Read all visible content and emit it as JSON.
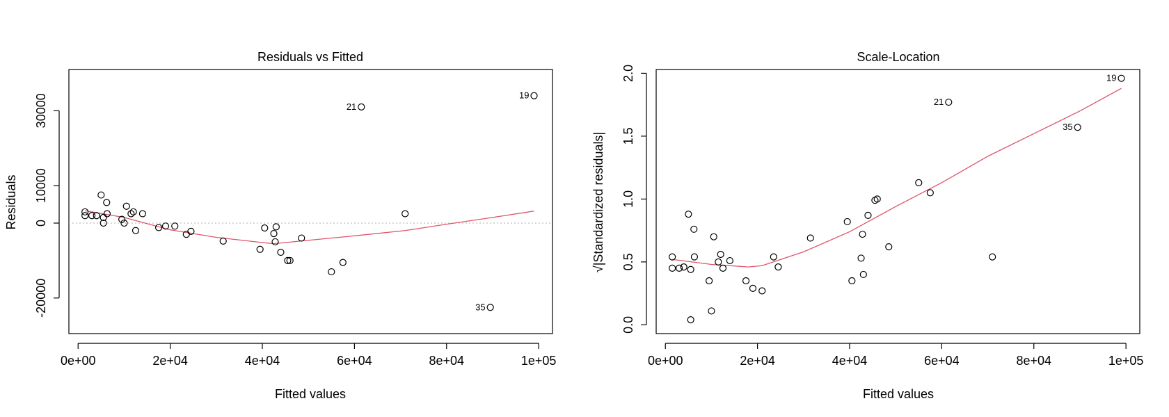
{
  "chart_data": [
    {
      "type": "scatter",
      "title": "Residuals vs Fitted",
      "xlabel": "Fitted values",
      "ylabel": "Residuals",
      "xlim": [
        -2000,
        103000
      ],
      "ylim": [
        -29500,
        41000
      ],
      "xticks": [
        0,
        20000,
        40000,
        60000,
        80000,
        100000
      ],
      "xtick_labels": [
        "0e+00",
        "2e+04",
        "4e+04",
        "6e+04",
        "8e+04",
        "1e+05"
      ],
      "yticks": [
        -20000,
        0,
        10000,
        30000
      ],
      "ytick_labels": [
        "-20000",
        "0",
        "10000",
        "30000"
      ],
      "reference_line": {
        "y": 0,
        "color": "#bebebe",
        "style": "dotted"
      },
      "points": [
        {
          "x": 1500,
          "y": 3000
        },
        {
          "x": 1500,
          "y": 2000
        },
        {
          "x": 3000,
          "y": 2000
        },
        {
          "x": 4000,
          "y": 2000
        },
        {
          "x": 5000,
          "y": 7500
        },
        {
          "x": 5500,
          "y": 1500
        },
        {
          "x": 5500,
          "y": 0
        },
        {
          "x": 6200,
          "y": 5500
        },
        {
          "x": 6300,
          "y": 2500
        },
        {
          "x": 9500,
          "y": 1000
        },
        {
          "x": 10000,
          "y": 0
        },
        {
          "x": 10500,
          "y": 4500
        },
        {
          "x": 11500,
          "y": 2500
        },
        {
          "x": 12000,
          "y": 3000
        },
        {
          "x": 12500,
          "y": -2000
        },
        {
          "x": 14000,
          "y": 2500
        },
        {
          "x": 17500,
          "y": -1200
        },
        {
          "x": 19000,
          "y": -800
        },
        {
          "x": 21000,
          "y": -800
        },
        {
          "x": 23500,
          "y": -3000
        },
        {
          "x": 24500,
          "y": -2200
        },
        {
          "x": 31500,
          "y": -4800
        },
        {
          "x": 39500,
          "y": -7000
        },
        {
          "x": 40500,
          "y": -1300
        },
        {
          "x": 42500,
          "y": -2800
        },
        {
          "x": 42800,
          "y": -5000
        },
        {
          "x": 43000,
          "y": -1000
        },
        {
          "x": 44000,
          "y": -7800
        },
        {
          "x": 45500,
          "y": -10000
        },
        {
          "x": 46000,
          "y": -10000
        },
        {
          "x": 48500,
          "y": -4000
        },
        {
          "x": 55000,
          "y": -13000
        },
        {
          "x": 57500,
          "y": -10500
        },
        {
          "x": 61500,
          "y": 31000,
          "label": "21"
        },
        {
          "x": 71000,
          "y": 2500
        },
        {
          "x": 89500,
          "y": -22500,
          "label": "35"
        },
        {
          "x": 99000,
          "y": 34000,
          "label": "19"
        }
      ],
      "smooth_line": {
        "color": "#df536b",
        "points": [
          [
            1500,
            3300
          ],
          [
            10000,
            1500
          ],
          [
            20000,
            -1800
          ],
          [
            30000,
            -3800
          ],
          [
            40000,
            -5200
          ],
          [
            42500,
            -5500
          ],
          [
            50000,
            -4600
          ],
          [
            60000,
            -3400
          ],
          [
            71000,
            -2000
          ],
          [
            80000,
            -300
          ],
          [
            90000,
            1500
          ],
          [
            99000,
            3200
          ]
        ]
      }
    },
    {
      "type": "scatter",
      "title": "Scale-Location",
      "xlabel": "Fitted values",
      "ylabel": "√|Standardized residuals|",
      "xlim": [
        -2000,
        103000
      ],
      "ylim": [
        -0.07,
        2.03
      ],
      "xticks": [
        0,
        20000,
        40000,
        60000,
        80000,
        100000
      ],
      "xtick_labels": [
        "0e+00",
        "2e+04",
        "4e+04",
        "6e+04",
        "8e+04",
        "1e+05"
      ],
      "yticks": [
        0.0,
        0.5,
        1.0,
        1.5,
        2.0
      ],
      "ytick_labels": [
        "0.0",
        "0.5",
        "1.0",
        "1.5",
        "2.0"
      ],
      "points": [
        {
          "x": 1500,
          "y": 0.54
        },
        {
          "x": 1500,
          "y": 0.45
        },
        {
          "x": 3000,
          "y": 0.45
        },
        {
          "x": 4000,
          "y": 0.46
        },
        {
          "x": 5000,
          "y": 0.88
        },
        {
          "x": 5500,
          "y": 0.44
        },
        {
          "x": 5500,
          "y": 0.04
        },
        {
          "x": 6200,
          "y": 0.76
        },
        {
          "x": 6300,
          "y": 0.54
        },
        {
          "x": 9500,
          "y": 0.35
        },
        {
          "x": 10000,
          "y": 0.11
        },
        {
          "x": 10500,
          "y": 0.7
        },
        {
          "x": 11500,
          "y": 0.5
        },
        {
          "x": 12000,
          "y": 0.56
        },
        {
          "x": 12500,
          "y": 0.45
        },
        {
          "x": 14000,
          "y": 0.51
        },
        {
          "x": 17500,
          "y": 0.35
        },
        {
          "x": 19000,
          "y": 0.29
        },
        {
          "x": 21000,
          "y": 0.27
        },
        {
          "x": 23500,
          "y": 0.54
        },
        {
          "x": 24500,
          "y": 0.46
        },
        {
          "x": 31500,
          "y": 0.69
        },
        {
          "x": 39500,
          "y": 0.82
        },
        {
          "x": 40500,
          "y": 0.35
        },
        {
          "x": 42500,
          "y": 0.53
        },
        {
          "x": 42800,
          "y": 0.72
        },
        {
          "x": 43000,
          "y": 0.4
        },
        {
          "x": 44000,
          "y": 0.87
        },
        {
          "x": 45500,
          "y": 0.99
        },
        {
          "x": 46000,
          "y": 1.0
        },
        {
          "x": 48500,
          "y": 0.62
        },
        {
          "x": 55000,
          "y": 1.13
        },
        {
          "x": 57500,
          "y": 1.05
        },
        {
          "x": 61500,
          "y": 1.77,
          "label": "21"
        },
        {
          "x": 71000,
          "y": 0.54
        },
        {
          "x": 89500,
          "y": 1.57,
          "label": "35"
        },
        {
          "x": 99000,
          "y": 1.96,
          "label": "19"
        }
      ],
      "smooth_line": {
        "color": "#df536b",
        "points": [
          [
            1500,
            0.52
          ],
          [
            10000,
            0.48
          ],
          [
            18000,
            0.46
          ],
          [
            21000,
            0.47
          ],
          [
            30000,
            0.58
          ],
          [
            40000,
            0.74
          ],
          [
            50000,
            0.94
          ],
          [
            60000,
            1.13
          ],
          [
            70000,
            1.34
          ],
          [
            80000,
            1.52
          ],
          [
            90000,
            1.7
          ],
          [
            99000,
            1.88
          ]
        ]
      }
    }
  ]
}
